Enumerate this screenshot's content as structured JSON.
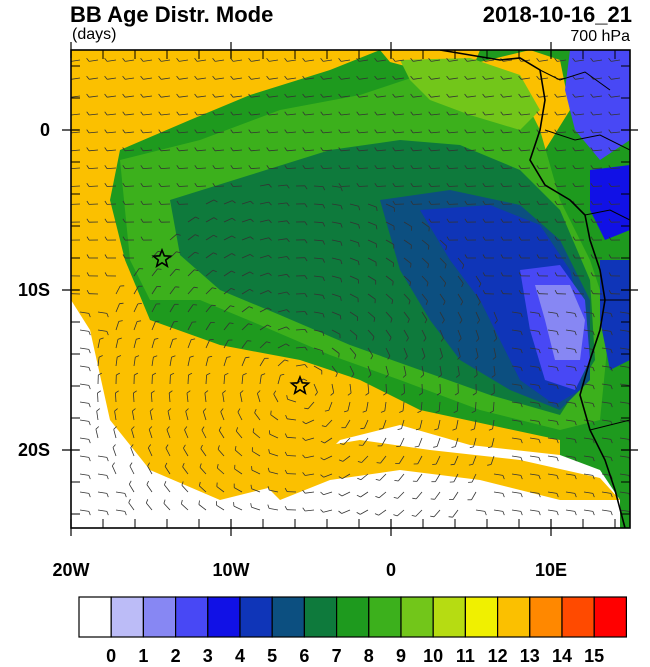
{
  "header": {
    "title": "BB Age Distr. Mode",
    "units": "(days)",
    "date": "2018-10-16_21",
    "level": "700 hPa"
  },
  "axes": {
    "y_labels": [
      "0",
      "10S",
      "20S"
    ],
    "x_labels": [
      "20W",
      "10W",
      "0",
      "10E"
    ]
  },
  "colorbar": {
    "labels": [
      "0",
      "1",
      "2",
      "3",
      "4",
      "5",
      "6",
      "7",
      "8",
      "9",
      "10",
      "11",
      "12",
      "13",
      "14",
      "15"
    ],
    "colors": [
      "#ffffff",
      "#bcbcf7",
      "#8787f3",
      "#4848f5",
      "#1111e6",
      "#0f35b8",
      "#0c4f80",
      "#0e7a3c",
      "#1e9a1e",
      "#3cb01c",
      "#72c61a",
      "#b6dc12",
      "#f0f000",
      "#fbc000",
      "#ff8800",
      "#ff4a00",
      "#ff0000"
    ]
  },
  "markers": {
    "type": "star",
    "count": 2
  }
}
